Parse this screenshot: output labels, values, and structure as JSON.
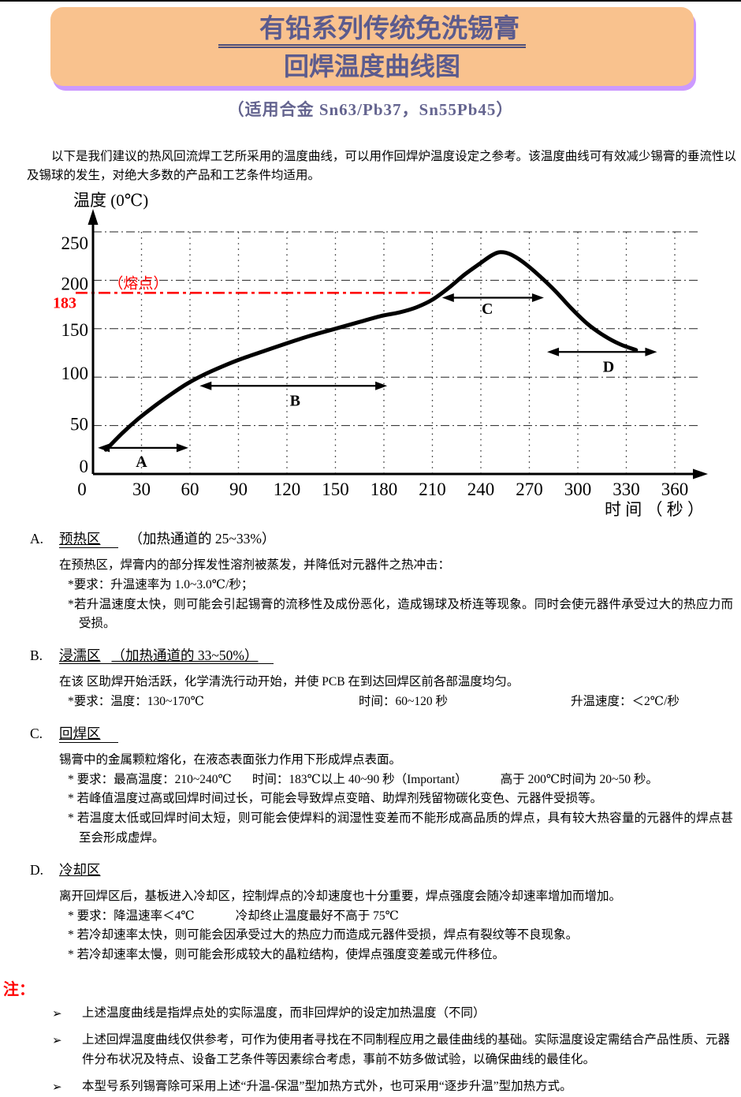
{
  "header": {
    "title_bold": "有铅",
    "title_rest": "系列传统免洗锡膏",
    "title_line2": "回焊温度曲线图",
    "subtitle": "（适用合金 Sn63/Pb37，Sn55Pb45）"
  },
  "intro": "以下是我们建议的热风回流焊工艺所采用的温度曲线，可以用作回焊炉温度设定之参考。该温度曲线可有效减少锡膏的垂流性以及锡球的发生，对绝大多数的产品和工艺条件均适用。",
  "chart_data": {
    "type": "line",
    "title": "回焊温度曲线图",
    "ylabel": "温度 (0℃)",
    "xlabel": "时 间 （ 秒 ）",
    "xlim": [
      0,
      390
    ],
    "ylim": [
      0,
      265
    ],
    "grid": true,
    "x_ticks": [
      0,
      30,
      60,
      90,
      120,
      150,
      180,
      210,
      240,
      270,
      300,
      330,
      360
    ],
    "y_ticks": [
      0,
      50,
      100,
      150,
      200,
      250
    ],
    "melting_point": {
      "value": 183,
      "tick_label": "183",
      "label": "（熔点）",
      "color": "#ff0000"
    },
    "series": [
      {
        "name": "回焊温度曲线",
        "color": "#000000",
        "points": [
          [
            8,
            25
          ],
          [
            18,
            42
          ],
          [
            28,
            57
          ],
          [
            38,
            70
          ],
          [
            48,
            82
          ],
          [
            58,
            93
          ],
          [
            68,
            102
          ],
          [
            80,
            111
          ],
          [
            92,
            119
          ],
          [
            106,
            127
          ],
          [
            120,
            135
          ],
          [
            135,
            143
          ],
          [
            150,
            150
          ],
          [
            165,
            157
          ],
          [
            178,
            163
          ],
          [
            190,
            167
          ],
          [
            200,
            172
          ],
          [
            210,
            180
          ],
          [
            220,
            192
          ],
          [
            230,
            206
          ],
          [
            240,
            218
          ],
          [
            247,
            226
          ],
          [
            252,
            229
          ],
          [
            258,
            227
          ],
          [
            266,
            219
          ],
          [
            276,
            205
          ],
          [
            286,
            189
          ],
          [
            296,
            171
          ],
          [
            306,
            155
          ],
          [
            316,
            143
          ],
          [
            326,
            134
          ],
          [
            336,
            128
          ]
        ]
      }
    ],
    "zones": [
      {
        "label": "A",
        "from": 3,
        "to": 59,
        "arrow_temp": 27,
        "label_t": 30,
        "label_temp": 13
      },
      {
        "label": "B",
        "from": 66,
        "to": 182,
        "arrow_temp": 91,
        "label_t": 125,
        "label_temp": 76
      },
      {
        "label": "C",
        "from": 216,
        "to": 279,
        "arrow_temp": 182,
        "label_t": 244,
        "label_temp": 171
      },
      {
        "label": "D",
        "from": 281,
        "to": 349,
        "arrow_temp": 126,
        "label_t": 319,
        "label_temp": 111
      }
    ]
  },
  "sections": [
    {
      "letter": "A.",
      "name": "预热区",
      "suffix": "（加热通道的 25~33%）",
      "para": "在预热区，焊膏内的部分挥发性溶剂被蒸发，并降低对元器件之热冲击：",
      "req": [
        "*要求：升温速率为 1.0~3.0℃/秒；"
      ],
      "stars": [
        "*若升温速度太快，则可能会引起锡膏的流移性及成份恶化，造成锡球及桥连等现象。同时会使元器件承受过大的热应力而受损。"
      ]
    },
    {
      "letter": "B.",
      "name": "浸濡区",
      "suffix": "（加热通道的 33~50%）",
      "para": "在该 区助焊开始活跃，化学清洗行动开始，并使 PCB 在到达回焊区前各部温度均匀。",
      "req": [
        "*要求：温度：130~170℃",
        "时间：60~120 秒",
        "升温速度：＜2℃/秒"
      ],
      "stars": []
    },
    {
      "letter": "C.",
      "name": "回焊区",
      "suffix": "",
      "para": "锡膏中的金属颗粒熔化，在液态表面张力作用下形成焊点表面。",
      "req": [
        "* 要求：最高温度：210~240℃",
        "时间：183℃以上 40~90 秒（Important）",
        "高于 200℃时间为 20~50 秒。"
      ],
      "stars": [
        "* 若峰值温度过高或回焊时间过长，可能会导致焊点变暗、助焊剂残留物碳化变色、元器件受损等。",
        "* 若温度太低或回焊时间太短，则可能会使焊料的润湿性变差而不能形成高品质的焊点，具有较大热容量的元器件的焊点甚至会形成虚焊。"
      ]
    },
    {
      "letter": "D.",
      "name": "冷却区",
      "suffix": "",
      "para": "离开回焊区后，基板进入冷却区，控制焊点的冷却速度也十分重要，焊点强度会随冷却速率增加而增加。",
      "req": [
        "* 要求：降温速率＜4℃",
        "冷却终止温度最好不高于 75℃"
      ],
      "stars": [
        "* 若冷却速率太快，则可能会因承受过大的热应力而造成元器件受损，焊点有裂纹等不良现象。",
        "* 若冷却速率太慢，则可能会形成较大的晶粒结构，使焊点强度变差或元件移位。"
      ]
    }
  ],
  "notes": {
    "label": "注：",
    "bullet": "➢",
    "items": [
      "上述温度曲线是指焊点处的实际温度，而非回焊炉的设定加热温度（不同）",
      "上述回焊温度曲线仅供参考，可作为使用者寻找在不同制程应用之最佳曲线的基础。实际温度设定需结合产品性质、元器件分布状况及特点、设备工艺条件等因素综合考虑，事前不妨多做试验，以确保曲线的最佳化。",
      "本型号系列锡膏除可采用上述“升温-保温”型加热方式外，也可采用“逐步升温”型加热方式。"
    ]
  },
  "colors": {
    "header_fill": "#f9c28e",
    "header_glow": "#cc9aff",
    "title_text": "#5b5b8e",
    "accent_red": "#ff0000",
    "curve": "#000000"
  }
}
